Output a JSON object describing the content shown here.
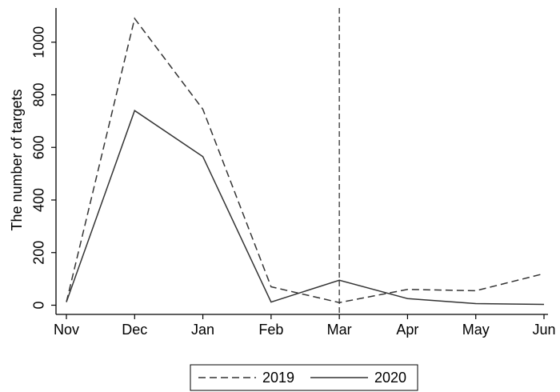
{
  "chart_data": {
    "type": "line",
    "y_label": "The number of targets",
    "categories": [
      "Nov",
      "Dec",
      "Jan",
      "Feb",
      "Mar",
      "Apr",
      "May",
      "Jun"
    ],
    "series": [
      {
        "name": "2019",
        "color": "#333333",
        "dash": "dashed",
        "values": [
          12,
          1090,
          745,
          70,
          10,
          60,
          55,
          120
        ]
      },
      {
        "name": "2020",
        "color": "#333333",
        "dash": "solid",
        "values": [
          12,
          740,
          565,
          12,
          95,
          25,
          6,
          3
        ]
      }
    ],
    "vline_category": "Mar",
    "ylim": [
      -35,
      1130
    ],
    "yticks": [
      0,
      200,
      400,
      600,
      800,
      1000
    ],
    "legend": "bottom"
  }
}
